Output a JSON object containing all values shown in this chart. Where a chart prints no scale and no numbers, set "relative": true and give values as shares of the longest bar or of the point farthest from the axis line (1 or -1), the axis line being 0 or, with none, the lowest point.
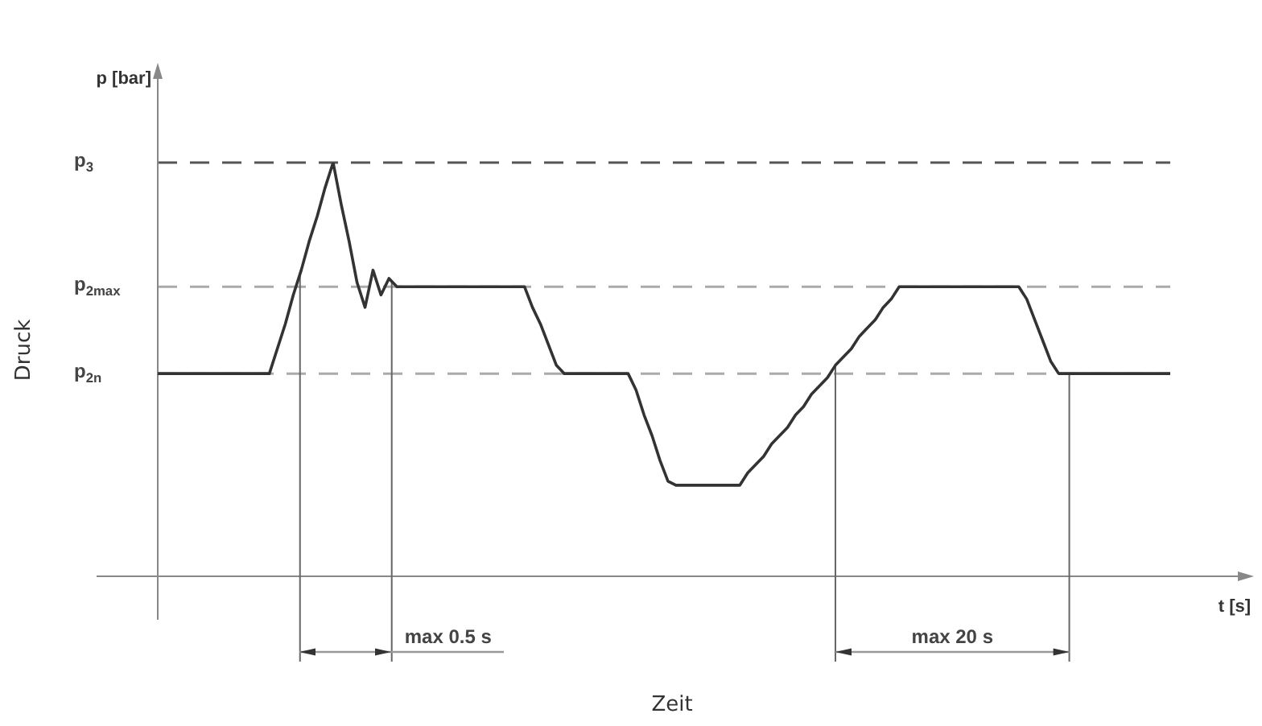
{
  "chart_data": {
    "type": "line",
    "relative": true,
    "xlabel": "t [s]",
    "ylabel": "p [bar]",
    "annotations": [
      "Druck",
      "Zeit",
      "max 0.5 s",
      "max 20 s"
    ],
    "categories": [
      null,
      null,
      null,
      null,
      null,
      null,
      null,
      null,
      null,
      null,
      null,
      null,
      null,
      null,
      null,
      null,
      null,
      null,
      null,
      null,
      null,
      null,
      null,
      null,
      null,
      null,
      null,
      null,
      null,
      null,
      null,
      null,
      null,
      null,
      null,
      null,
      null,
      null,
      null,
      null,
      null,
      null,
      null,
      null,
      null,
      null,
      null,
      null,
      null,
      null,
      null,
      null,
      null,
      null,
      null,
      null,
      null,
      null,
      null,
      null,
      null,
      null,
      null,
      null,
      null,
      null,
      null,
      null,
      null,
      null,
      null,
      null,
      null,
      null,
      null,
      null,
      null,
      null,
      null,
      null,
      null,
      null,
      null,
      null,
      null,
      null,
      null,
      null,
      null,
      null,
      null,
      null,
      null,
      null,
      null,
      null,
      null,
      null,
      null,
      null,
      null,
      null,
      null,
      null,
      null,
      null,
      null,
      null,
      null,
      null,
      null,
      null,
      null,
      null,
      null,
      null,
      null,
      null,
      null,
      null,
      null,
      null,
      null,
      null,
      null,
      null,
      null,
      null
    ],
    "color": "#333333",
    "marker": "none",
    "line_style": "solid",
    "values": [
      0.49,
      0.49,
      0.49,
      0.49,
      0.49,
      0.49,
      0.49,
      0.49,
      0.49,
      0.49,
      0.49,
      0.49,
      0.49,
      0.49,
      0.49,
      0.55,
      0.61,
      0.68,
      0.74,
      0.81,
      0.87,
      0.94,
      1.0,
      0.9,
      0.81,
      0.71,
      0.65,
      0.74,
      0.68,
      0.72,
      0.7,
      0.7,
      0.7,
      0.7,
      0.7,
      0.7,
      0.7,
      0.7,
      0.7,
      0.7,
      0.7,
      0.7,
      0.7,
      0.7,
      0.7,
      0.7,
      0.7,
      0.65,
      0.61,
      0.56,
      0.51,
      0.49,
      0.49,
      0.49,
      0.49,
      0.49,
      0.49,
      0.49,
      0.49,
      0.49,
      0.45,
      0.39,
      0.34,
      0.28,
      0.23,
      0.22,
      0.22,
      0.22,
      0.22,
      0.22,
      0.22,
      0.22,
      0.22,
      0.22,
      0.25,
      0.27,
      0.29,
      0.32,
      0.34,
      0.36,
      0.39,
      0.41,
      0.44,
      0.46,
      0.48,
      0.51,
      0.53,
      0.55,
      0.58,
      0.6,
      0.62,
      0.65,
      0.67,
      0.7,
      0.7,
      0.7,
      0.7,
      0.7,
      0.7,
      0.7,
      0.7,
      0.7,
      0.7,
      0.7,
      0.7,
      0.7,
      0.7,
      0.7,
      0.7,
      0.67,
      0.62,
      0.57,
      0.52,
      0.49,
      0.49,
      0.49,
      0.49,
      0.49,
      0.49,
      0.49,
      0.49,
      0.49,
      0.49,
      0.49,
      0.49,
      0.49,
      0.49,
      0.49
    ],
    "ref_lines": [
      {
        "axis": "y",
        "value": 1.0,
        "label": "p$_{3}$",
        "color": "#555555",
        "line_style": "dashed"
      },
      {
        "axis": "y",
        "value": 0.7,
        "label": "p$_{2max}$",
        "color": "#aaaaaa",
        "line_style": "dashed"
      },
      {
        "axis": "y",
        "value": 0.49,
        "label": "p$_{2n}$",
        "color": "#aaaaaa",
        "line_style": "dashed"
      }
    ]
  }
}
